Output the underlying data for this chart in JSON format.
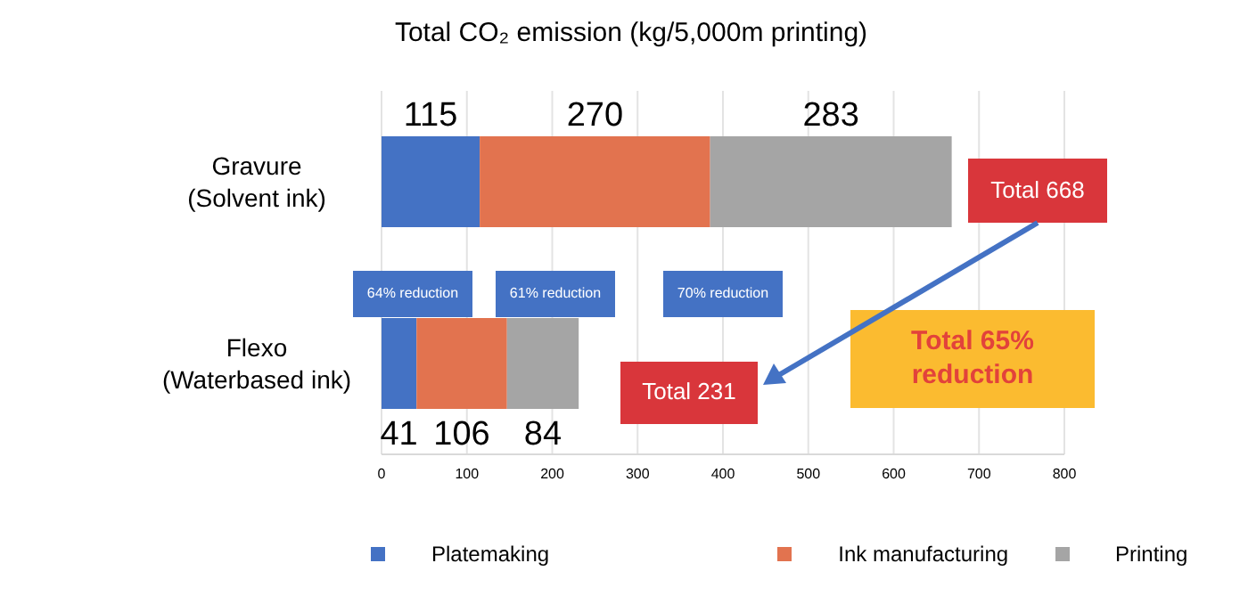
{
  "chart_data": {
    "type": "bar",
    "orientation": "horizontal",
    "stacked": true,
    "title": "Total CO₂ emission (kg/5,000m printing)",
    "categories": [
      "Gravure\n(Solvent ink)",
      "Flexo\n(Waterbased ink)"
    ],
    "series": [
      {
        "name": "Platemaking",
        "color": "#4472c4",
        "values": [
          115,
          41
        ]
      },
      {
        "name": "Ink manufacturing",
        "color": "#e2734f",
        "values": [
          270,
          106
        ]
      },
      {
        "name": "Printing",
        "color": "#a5a5a5",
        "values": [
          283,
          84
        ]
      }
    ],
    "xlim": [
      0,
      800
    ],
    "xticks": [
      0,
      100,
      200,
      300,
      400,
      500,
      600,
      700,
      800
    ],
    "grid": "x",
    "legend": "bottom",
    "data_labels": true,
    "annotations": [
      "64% reduction",
      "61% reduction",
      "70% reduction",
      "Total 668",
      "Total 231",
      "Total 65% reduction"
    ]
  }
}
